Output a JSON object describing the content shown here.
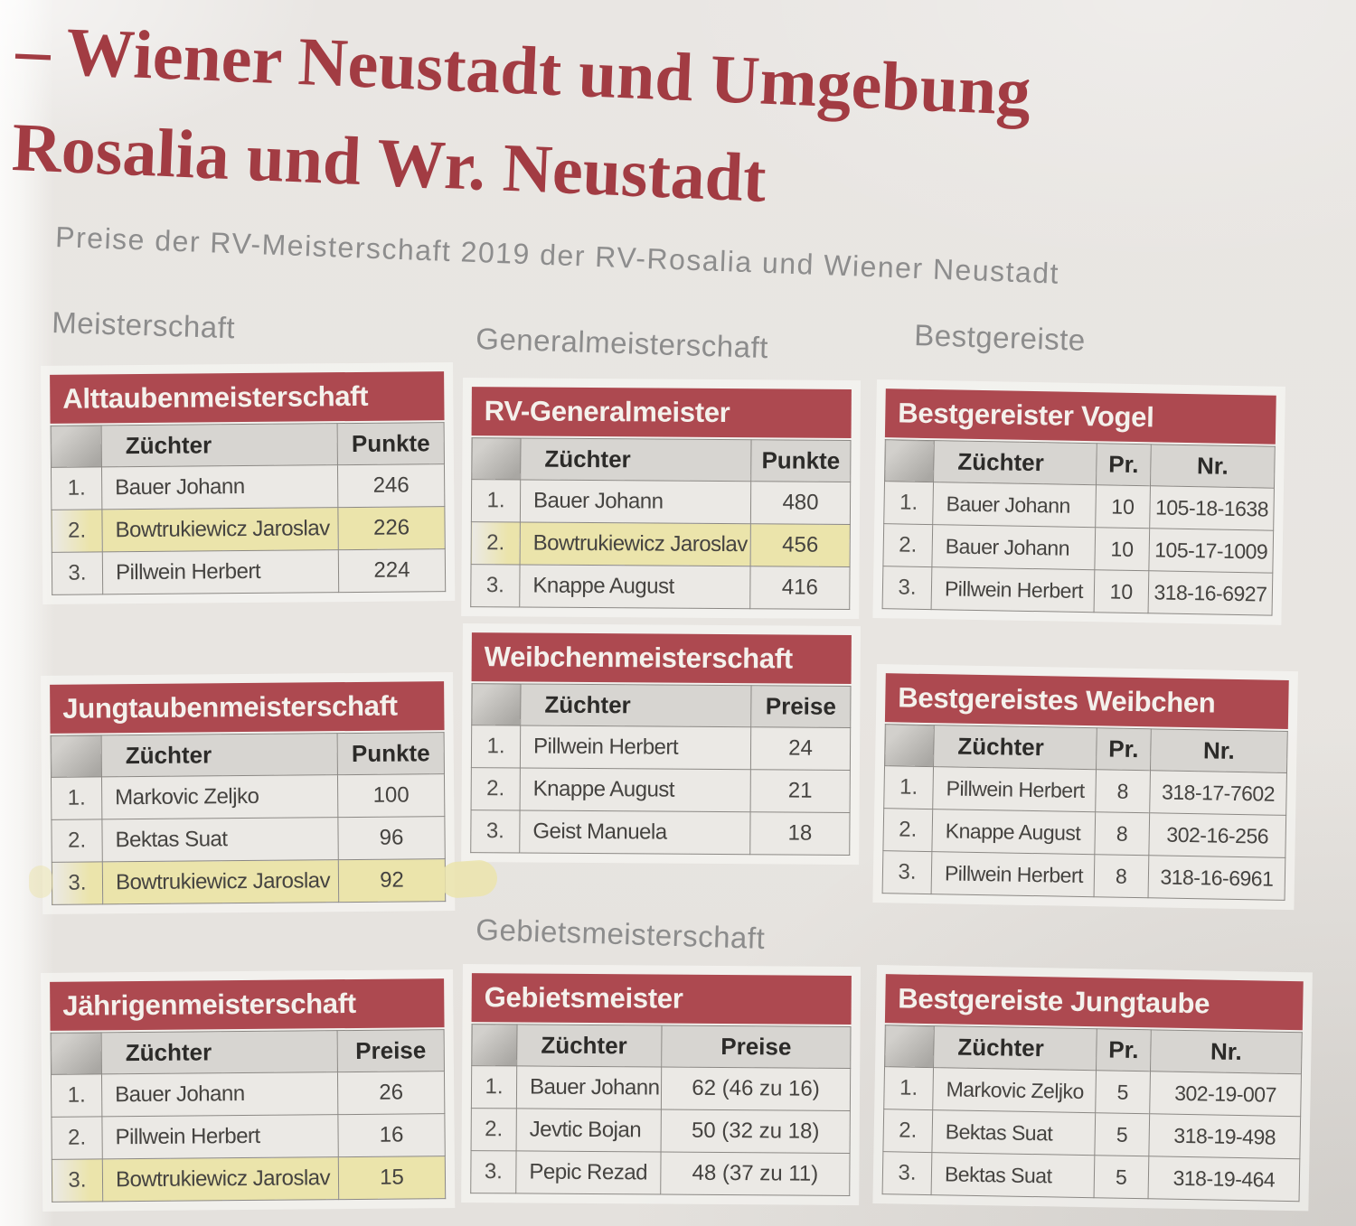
{
  "page": {
    "title_line1": "– Wiener Neustadt und Umgebung",
    "title_line2": "Rosalia und Wr. Neustadt",
    "subtitle": "Preise der RV-Meisterschaft 2019 der RV-Rosalia und Wiener Neustadt"
  },
  "sections": {
    "left": "Meisterschaft",
    "middle": "Generalmeisterschaft",
    "right": "Bestgereiste",
    "middle_bottom": "Gebietsmeisterschaft"
  },
  "colors": {
    "accent_red": "#ad4950",
    "title_red": "#a23c43",
    "highlight_yellow": "#ebe4ab",
    "label_gray": "#8c8c8c"
  },
  "tables": {
    "alttauben": {
      "title": "Alttaubenmeisterschaft",
      "columns": [
        "Züchter",
        "Punkte"
      ],
      "rows": [
        {
          "rank": "1.",
          "name": "Bauer Johann",
          "value": "246",
          "highlight": false
        },
        {
          "rank": "2.",
          "name": "Bowtrukiewicz Jaroslav",
          "value": "226",
          "highlight": true
        },
        {
          "rank": "3.",
          "name": "Pillwein Herbert",
          "value": "224",
          "highlight": false
        }
      ]
    },
    "jungtauben": {
      "title": "Jungtaubenmeisterschaft",
      "columns": [
        "Züchter",
        "Punkte"
      ],
      "rows": [
        {
          "rank": "1.",
          "name": "Markovic Zeljko",
          "value": "100",
          "highlight": false
        },
        {
          "rank": "2.",
          "name": "Bektas Suat",
          "value": "96",
          "highlight": false
        },
        {
          "rank": "3.",
          "name": "Bowtrukiewicz Jaroslav",
          "value": "92",
          "highlight": true
        }
      ]
    },
    "jaehrigen": {
      "title": "Jährigenmeisterschaft",
      "columns": [
        "Züchter",
        "Preise"
      ],
      "rows": [
        {
          "rank": "1.",
          "name": "Bauer Johann",
          "value": "26",
          "highlight": false
        },
        {
          "rank": "2.",
          "name": "Pillwein Herbert",
          "value": "16",
          "highlight": false
        },
        {
          "rank": "3.",
          "name": "Bowtrukiewicz Jaroslav",
          "value": "15",
          "highlight": true
        }
      ]
    },
    "generalmeister": {
      "title": "RV-Generalmeister",
      "columns": [
        "Züchter",
        "Punkte"
      ],
      "rows": [
        {
          "rank": "1.",
          "name": "Bauer Johann",
          "value": "480",
          "highlight": false
        },
        {
          "rank": "2.",
          "name": "Bowtrukiewicz Jaroslav",
          "value": "456",
          "highlight": true
        },
        {
          "rank": "3.",
          "name": "Knappe August",
          "value": "416",
          "highlight": false
        }
      ]
    },
    "weibchen": {
      "title": "Weibchenmeisterschaft",
      "columns": [
        "Züchter",
        "Preise"
      ],
      "rows": [
        {
          "rank": "1.",
          "name": "Pillwein Herbert",
          "value": "24",
          "highlight": false
        },
        {
          "rank": "2.",
          "name": "Knappe August",
          "value": "21",
          "highlight": false
        },
        {
          "rank": "3.",
          "name": "Geist Manuela",
          "value": "18",
          "highlight": false
        }
      ]
    },
    "gebietsmeister": {
      "title": "Gebietsmeister",
      "columns": [
        "Züchter",
        "Preise"
      ],
      "rows": [
        {
          "rank": "1.",
          "name": "Bauer Johann",
          "value": "62 (46 zu 16)",
          "highlight": false
        },
        {
          "rank": "2.",
          "name": "Jevtic Bojan",
          "value": "50 (32 zu 18)",
          "highlight": false
        },
        {
          "rank": "3.",
          "name": "Pepic Rezad",
          "value": "48 (37 zu 11)",
          "highlight": false
        }
      ]
    },
    "vogel": {
      "title": "Bestgereister Vogel",
      "columns": [
        "Züchter",
        "Pr.",
        "Nr."
      ],
      "rows": [
        {
          "rank": "1.",
          "name": "Bauer Johann",
          "pr": "10",
          "nr": "105-18-1638",
          "highlight": false
        },
        {
          "rank": "2.",
          "name": "Bauer Johann",
          "pr": "10",
          "nr": "105-17-1009",
          "highlight": false
        },
        {
          "rank": "3.",
          "name": "Pillwein Herbert",
          "pr": "10",
          "nr": "318-16-6927",
          "highlight": false
        }
      ]
    },
    "bgweibchen": {
      "title": "Bestgereistes Weibchen",
      "columns": [
        "Züchter",
        "Pr.",
        "Nr."
      ],
      "rows": [
        {
          "rank": "1.",
          "name": "Pillwein Herbert",
          "pr": "8",
          "nr": "318-17-7602",
          "highlight": false
        },
        {
          "rank": "2.",
          "name": "Knappe August",
          "pr": "8",
          "nr": "302-16-256",
          "highlight": false
        },
        {
          "rank": "3.",
          "name": "Pillwein Herbert",
          "pr": "8",
          "nr": "318-16-6961",
          "highlight": false
        }
      ]
    },
    "bgjungtaube": {
      "title": "Bestgereiste Jungtaube",
      "columns": [
        "Züchter",
        "Pr.",
        "Nr."
      ],
      "rows": [
        {
          "rank": "1.",
          "name": "Markovic Zeljko",
          "pr": "5",
          "nr": "302-19-007",
          "highlight": false
        },
        {
          "rank": "2.",
          "name": "Bektas Suat",
          "pr": "5",
          "nr": "318-19-498",
          "highlight": false
        },
        {
          "rank": "3.",
          "name": "Bektas Suat",
          "pr": "5",
          "nr": "318-19-464",
          "highlight": false
        }
      ]
    }
  }
}
